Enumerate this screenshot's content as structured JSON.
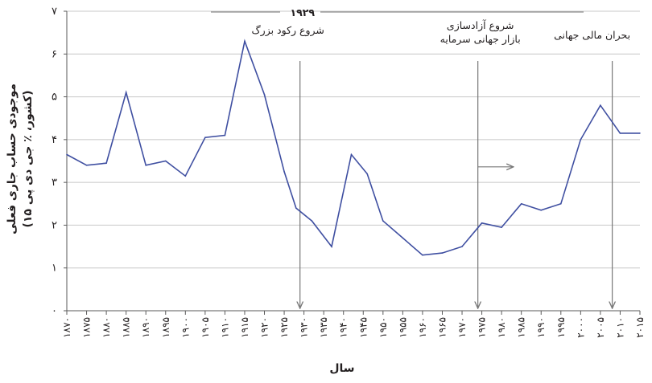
{
  "chart_data": {
    "type": "line",
    "xlabel": "سال",
    "ylabel_line1": "موجودی حساب جاری فعلی",
    "ylabel_line2": "(۱۵ کشور، ٪ جی دی پی)",
    "ylim": [
      0,
      7
    ],
    "xlim": [
      1870,
      2015
    ],
    "grid": "horizontal",
    "y_ticks": [
      {
        "value": 0,
        "label": "۰"
      },
      {
        "value": 1,
        "label": "۱"
      },
      {
        "value": 2,
        "label": "۲"
      },
      {
        "value": 3,
        "label": "۳"
      },
      {
        "value": 4,
        "label": "۴"
      },
      {
        "value": 5,
        "label": "۵"
      },
      {
        "value": 6,
        "label": "۶"
      },
      {
        "value": 7,
        "label": "۷"
      }
    ],
    "x_ticks": [
      {
        "value": 1870,
        "label": "۱۸۷۰"
      },
      {
        "value": 1875,
        "label": "۱۸۷۵"
      },
      {
        "value": 1880,
        "label": "۱۸۸۰"
      },
      {
        "value": 1885,
        "label": "۱۸۸۵"
      },
      {
        "value": 1890,
        "label": "۱۸۹۰"
      },
      {
        "value": 1895,
        "label": "۱۸۹۵"
      },
      {
        "value": 1900,
        "label": "۱۹۰۰"
      },
      {
        "value": 1905,
        "label": "۱۹۰۵"
      },
      {
        "value": 1910,
        "label": "۱۹۱۰"
      },
      {
        "value": 1915,
        "label": "۱۹۱۵"
      },
      {
        "value": 1920,
        "label": "۱۹۲۰"
      },
      {
        "value": 1925,
        "label": "۱۹۲۵"
      },
      {
        "value": 1930,
        "label": "۱۹۳۰"
      },
      {
        "value": 1935,
        "label": "۱۹۳۵"
      },
      {
        "value": 1940,
        "label": "۱۹۴۰"
      },
      {
        "value": 1945,
        "label": "۱۹۴۵"
      },
      {
        "value": 1950,
        "label": "۱۹۵۰"
      },
      {
        "value": 1955,
        "label": "۱۹۵۵"
      },
      {
        "value": 1960,
        "label": "۱۹۶۰"
      },
      {
        "value": 1965,
        "label": "۱۹۶۵"
      },
      {
        "value": 1970,
        "label": "۱۹۷۰"
      },
      {
        "value": 1975,
        "label": "۱۹۷۵"
      },
      {
        "value": 1980,
        "label": "۱۹۸۰"
      },
      {
        "value": 1985,
        "label": "۱۹۸۵"
      },
      {
        "value": 1990,
        "label": "۱۹۹۰"
      },
      {
        "value": 1995,
        "label": "۱۹۹۵"
      },
      {
        "value": 2000,
        "label": "۲۰۰۰"
      },
      {
        "value": 2005,
        "label": "۲۰۰۵"
      },
      {
        "value": 2010,
        "label": "۲۰۱۰"
      },
      {
        "value": 2015,
        "label": "۲۰۱۵"
      }
    ],
    "series": [
      {
        "color": "#3f4fa1",
        "x": [
          1870,
          1875,
          1880,
          1885,
          1890,
          1895,
          1900,
          1905,
          1910,
          1915,
          1920,
          1925,
          1928,
          1932,
          1937,
          1942,
          1946,
          1950,
          1955,
          1960,
          1965,
          1970,
          1975,
          1980,
          1985,
          1990,
          1995,
          2000,
          2005,
          2010,
          2015
        ],
        "y": [
          3.65,
          3.4,
          3.45,
          5.1,
          3.4,
          3.5,
          3.15,
          4.05,
          4.1,
          6.3,
          5.05,
          3.25,
          2.4,
          2.1,
          1.5,
          3.65,
          3.2,
          2.1,
          1.7,
          1.3,
          1.35,
          1.5,
          2.05,
          1.95,
          2.5,
          2.35,
          2.5,
          4.0,
          4.8,
          4.15,
          4.15
        ]
      }
    ],
    "annotations": [
      {
        "year_label": "۱۹۲۹",
        "text_lines": [
          "شروع رکود بزرگ"
        ],
        "x": 1929
      },
      {
        "year_label": "",
        "text_lines": [
          "شروع آزادسازی",
          "بازار جهانی سرمایه"
        ],
        "x": 1974
      },
      {
        "year_label": "",
        "text_lines": [
          "بحران مالی جهانی"
        ],
        "x": 2008
      }
    ],
    "trend_arrow_x": [
      1974,
      1983
    ],
    "trend_arrow_y": 3.4,
    "colors": {
      "line": "#3f4fa1",
      "grid": "#c8c8c8",
      "axis": "#5a5a5a",
      "annotation": "#777777"
    }
  }
}
